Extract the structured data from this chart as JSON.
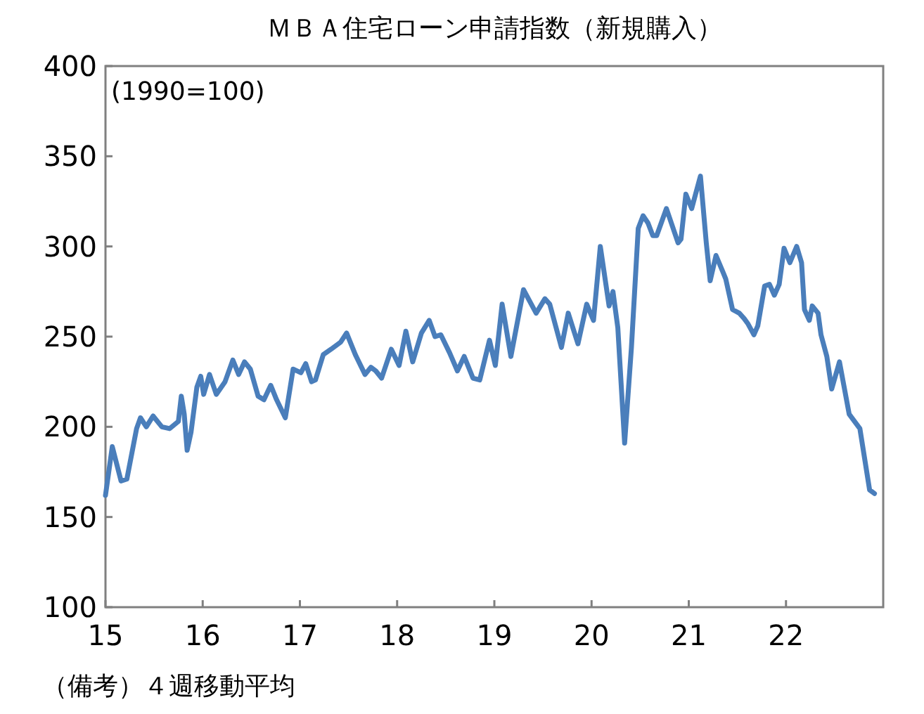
{
  "chart_data": {
    "type": "line",
    "title": "ＭＢＡ住宅ローン申請指数（新規購入）",
    "ylabel": "(1990=100)",
    "annotations": [
      "（備考）４週移動平均"
    ],
    "xlim": [
      2015,
      2023
    ],
    "ylim": [
      100,
      400
    ],
    "xticks": [
      {
        "value": 2015,
        "label": "15"
      },
      {
        "value": 2016,
        "label": "16"
      },
      {
        "value": 2017,
        "label": "17"
      },
      {
        "value": 2018,
        "label": "18"
      },
      {
        "value": 2019,
        "label": "19"
      },
      {
        "value": 2020,
        "label": "20"
      },
      {
        "value": 2021,
        "label": "21"
      },
      {
        "value": 2022,
        "label": "22"
      }
    ],
    "yticks": [
      100,
      150,
      200,
      250,
      300,
      350,
      400
    ],
    "marker": "none",
    "line_style": "solid",
    "series": [
      {
        "color": "#4a7ebb",
        "x": [
          2015.0,
          2015.07,
          2015.16,
          2015.22,
          2015.32,
          2015.36,
          2015.42,
          2015.49,
          2015.58,
          2015.66,
          2015.75,
          2015.78,
          2015.81,
          2015.84,
          2015.88,
          2015.94,
          2015.98,
          2016.01,
          2016.07,
          2016.14,
          2016.23,
          2016.31,
          2016.37,
          2016.43,
          2016.49,
          2016.57,
          2016.63,
          2016.7,
          2016.76,
          2016.85,
          2016.93,
          2017.01,
          2017.06,
          2017.12,
          2017.16,
          2017.24,
          2017.32,
          2017.42,
          2017.48,
          2017.57,
          2017.67,
          2017.73,
          2017.78,
          2017.84,
          2017.94,
          2018.02,
          2018.09,
          2018.16,
          2018.25,
          2018.33,
          2018.39,
          2018.45,
          2018.54,
          2018.62,
          2018.69,
          2018.78,
          2018.85,
          2018.95,
          2019.01,
          2019.08,
          2019.17,
          2019.3,
          2019.43,
          2019.52,
          2019.57,
          2019.69,
          2019.76,
          2019.86,
          2019.95,
          2020.02,
          2020.09,
          2020.18,
          2020.22,
          2020.27,
          2020.34,
          2020.41,
          2020.48,
          2020.53,
          2020.58,
          2020.63,
          2020.67,
          2020.77,
          2020.89,
          2020.92,
          2020.97,
          2021.03,
          2021.12,
          2021.18,
          2021.22,
          2021.28,
          2021.35,
          2021.38,
          2021.45,
          2021.52,
          2021.57,
          2021.61,
          2021.67,
          2021.71,
          2021.78,
          2021.83,
          2021.88,
          2021.93,
          2021.98,
          2022.04,
          2022.11,
          2022.16,
          2022.19,
          2022.24,
          2022.27,
          2022.33,
          2022.36,
          2022.42,
          2022.47,
          2022.55,
          2022.65,
          2022.76,
          2022.86,
          2022.91
        ],
        "values": [
          162,
          189,
          170,
          171,
          199,
          205,
          200,
          206,
          200,
          199,
          203,
          217,
          207,
          187,
          197,
          222,
          228,
          218,
          229,
          218,
          225,
          237,
          229,
          236,
          232,
          217,
          215,
          223,
          215,
          205,
          232,
          230,
          235,
          225,
          226,
          240,
          243,
          247,
          252,
          240,
          229,
          233,
          231,
          227,
          243,
          234,
          253,
          236,
          252,
          259,
          250,
          251,
          241,
          231,
          239,
          227,
          226,
          248,
          234,
          268,
          239,
          276,
          263,
          271,
          268,
          244,
          263,
          246,
          268,
          259,
          300,
          267,
          275,
          255,
          191,
          244,
          310,
          317,
          313,
          306,
          306,
          321,
          302,
          304,
          329,
          321,
          339,
          302,
          281,
          295,
          286,
          282,
          265,
          263,
          260,
          257,
          251,
          256,
          278,
          279,
          273,
          279,
          299,
          291,
          300,
          291,
          265,
          259,
          267,
          263,
          251,
          239,
          221,
          236,
          207,
          199,
          165,
          163
        ]
      }
    ]
  }
}
